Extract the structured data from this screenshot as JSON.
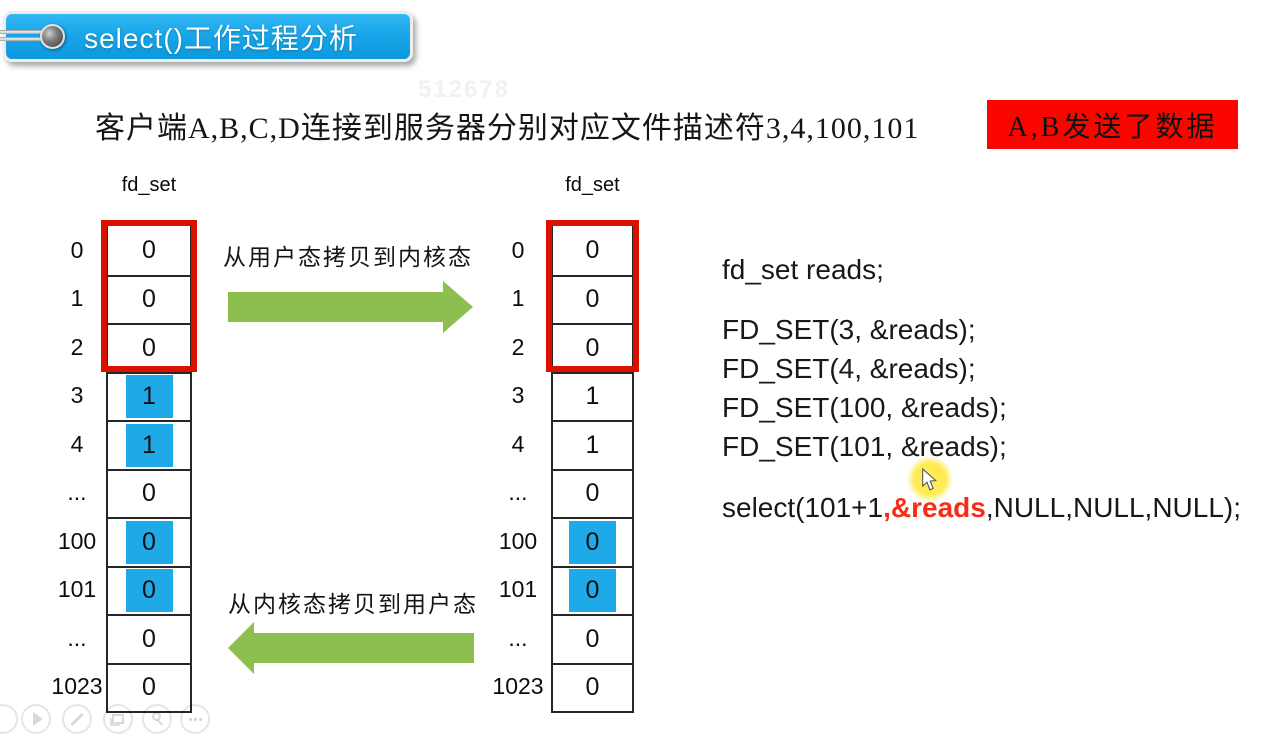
{
  "banner": {
    "title": "select()工作过程分析"
  },
  "watermark": "512678",
  "subtitle": "客户端A,B,C,D连接到服务器分别对应文件描述符3,4,100,101",
  "alert": {
    "text": "A,B发送了数据"
  },
  "diagram": {
    "left_table": {
      "caption": "fd_set",
      "rows": [
        {
          "label": "0",
          "value": "0",
          "hl": false
        },
        {
          "label": "1",
          "value": "0",
          "hl": false
        },
        {
          "label": "2",
          "value": "0",
          "hl": false
        },
        {
          "label": "3",
          "value": "1",
          "hl": true
        },
        {
          "label": "4",
          "value": "1",
          "hl": true
        },
        {
          "label": "...",
          "value": "0",
          "hl": false
        },
        {
          "label": "100",
          "value": "0",
          "hl": true
        },
        {
          "label": "101",
          "value": "0",
          "hl": true
        },
        {
          "label": "...",
          "value": "0",
          "hl": false
        },
        {
          "label": "1023",
          "value": "0",
          "hl": false
        }
      ]
    },
    "right_table": {
      "caption": "fd_set",
      "rows": [
        {
          "label": "0",
          "value": "0",
          "hl": false
        },
        {
          "label": "1",
          "value": "0",
          "hl": false
        },
        {
          "label": "2",
          "value": "0",
          "hl": false
        },
        {
          "label": "3",
          "value": "1",
          "hl": false
        },
        {
          "label": "4",
          "value": "1",
          "hl": false
        },
        {
          "label": "...",
          "value": "0",
          "hl": false
        },
        {
          "label": "100",
          "value": "0",
          "hl": true
        },
        {
          "label": "101",
          "value": "0",
          "hl": true
        },
        {
          "label": "...",
          "value": "0",
          "hl": false
        },
        {
          "label": "1023",
          "value": "0",
          "hl": false
        }
      ]
    },
    "arrow_top": {
      "label": "从用户态拷贝到内核态",
      "direction": "right"
    },
    "arrow_bottom": {
      "label": "从内核态拷贝到用户态",
      "direction": "left"
    }
  },
  "code": {
    "declaration": "fd_set reads;",
    "fd_set_lines": [
      "FD_SET(3, &reads);",
      "FD_SET(4, &reads);",
      "FD_SET(100, &reads);",
      "FD_SET(101, &reads);"
    ],
    "select_line": {
      "pre": "select(101+1",
      "highlight": ",&reads",
      "post": ",NULL,NULL,NULL);"
    }
  },
  "player_controls": [
    {
      "icon": "hidden"
    },
    {
      "icon": "play"
    },
    {
      "icon": "pencil"
    },
    {
      "icon": "screenshot"
    },
    {
      "icon": "magnifier"
    },
    {
      "icon": "more"
    }
  ],
  "colors": {
    "banner_blue": "#18a6e9",
    "cell_highlight_blue": "#1ea9e9",
    "arrow_green": "#8dbf4e",
    "alert_red": "#fb0500",
    "frame_red": "#d91200",
    "code_highlight_red": "#f82c16"
  }
}
